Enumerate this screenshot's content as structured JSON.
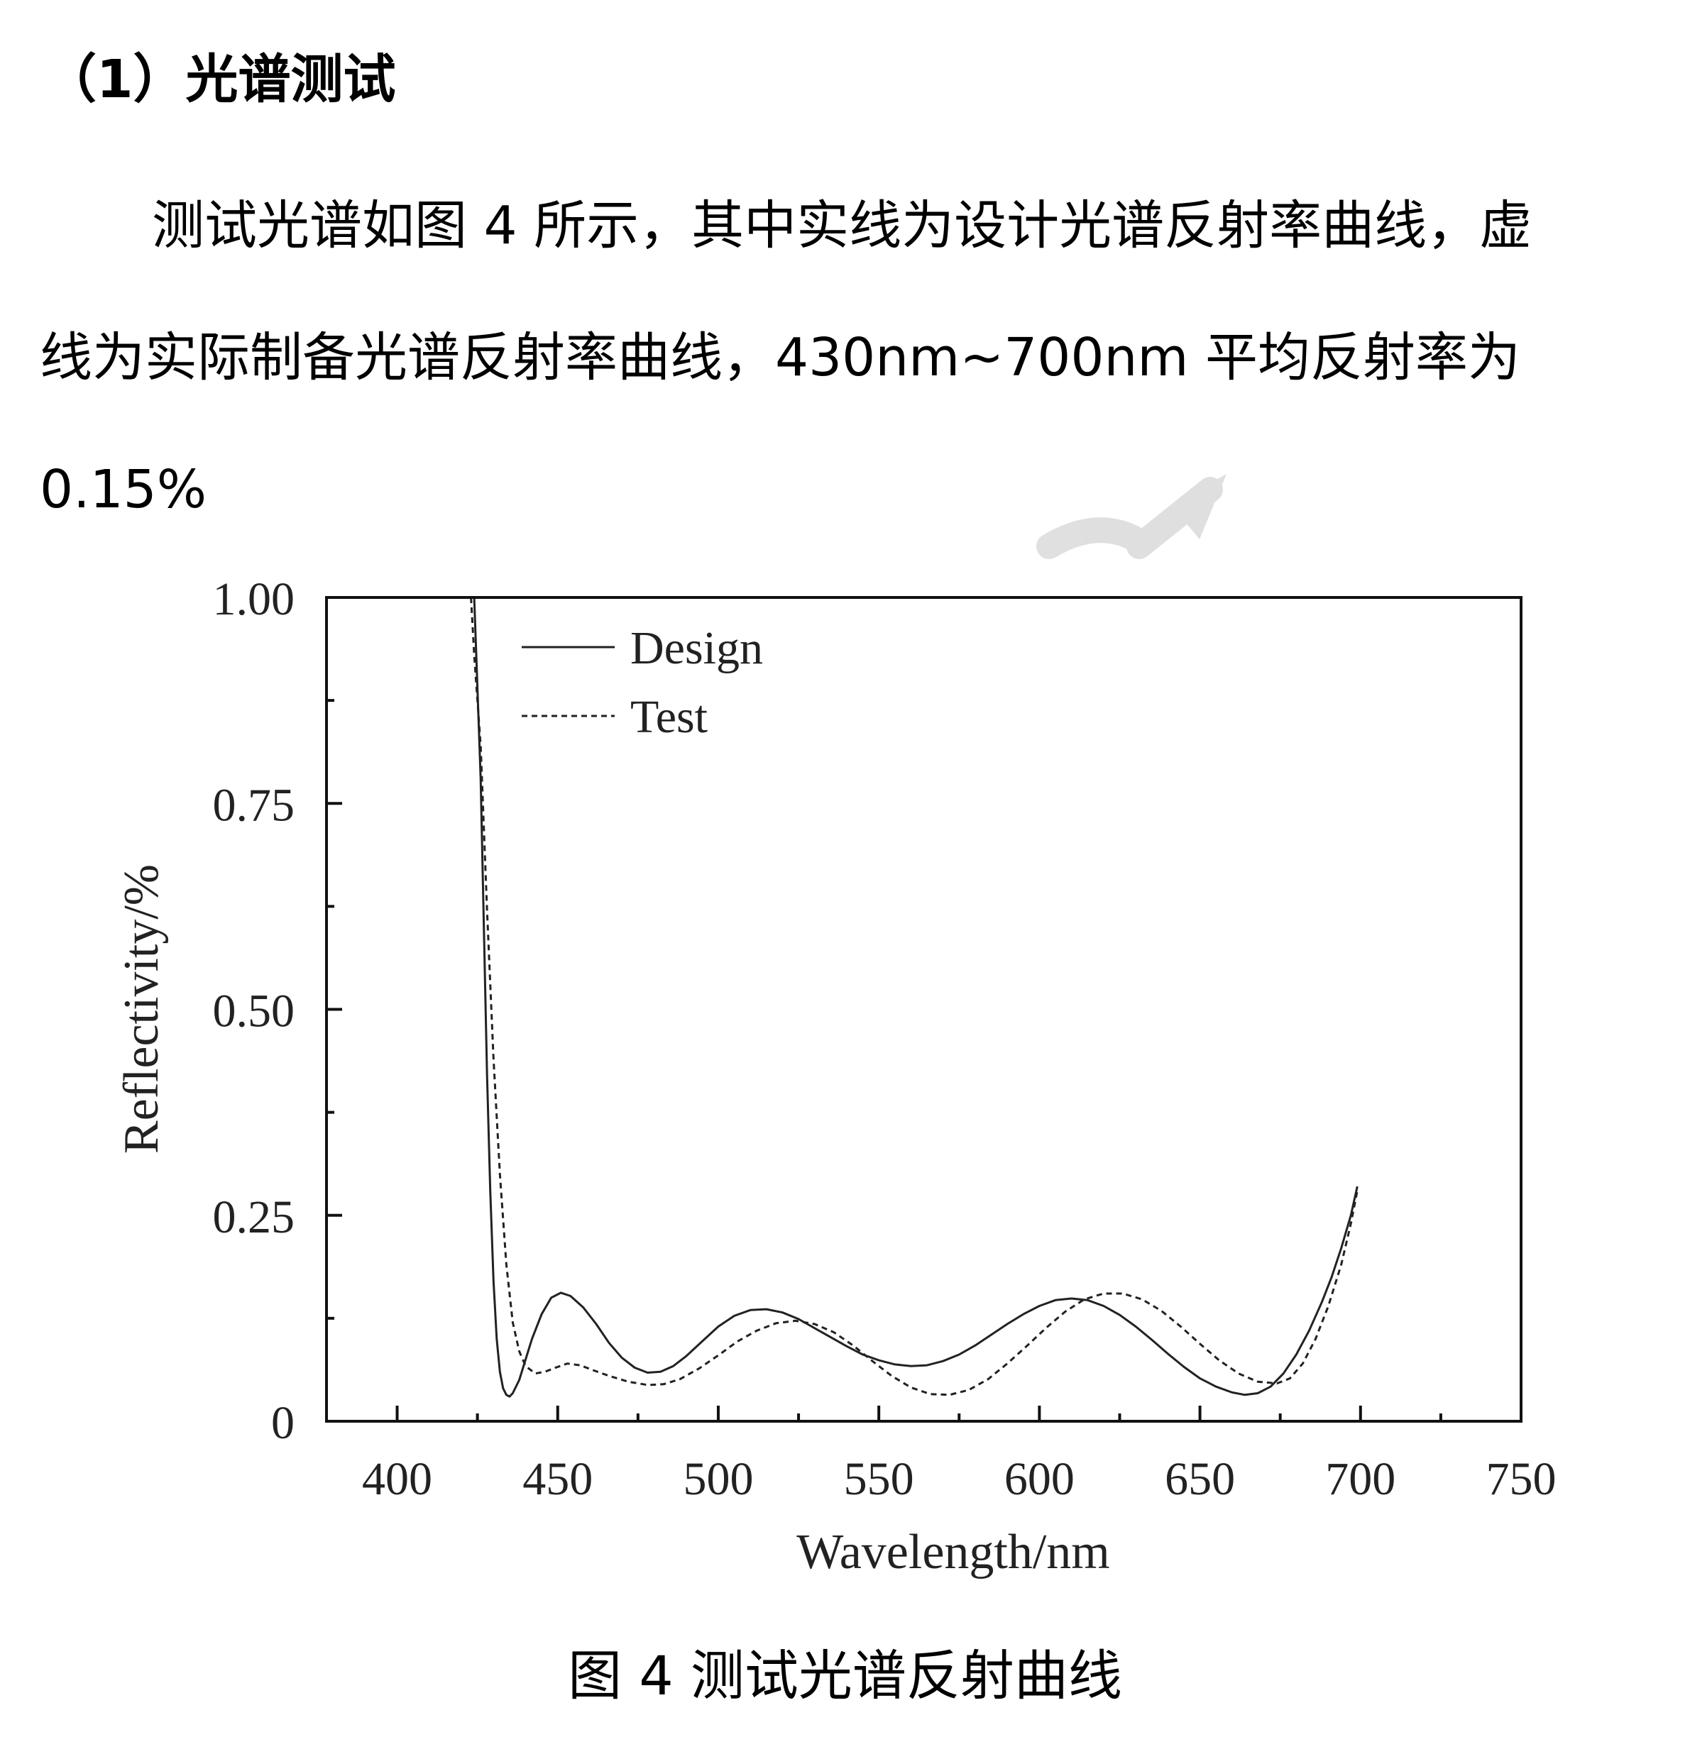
{
  "section": {
    "heading": "（1）光谱测试",
    "paragraph_lines": [
      "测试光谱如图 4 所示，其中实线为设计光谱反射率曲线，虚",
      "线为实际制备光谱反射率曲线，430nm~700nm 平均反射率为",
      "0.15%"
    ]
  },
  "figure": {
    "caption": "图 4  测试光谱反射曲线"
  },
  "chart_data": {
    "type": "line",
    "title": "",
    "xlabel": "Wavelength/nm",
    "ylabel": "Reflectivity/%",
    "xlim": [
      378,
      750
    ],
    "ylim": [
      0,
      1.0
    ],
    "x_ticks": [
      400,
      450,
      500,
      550,
      600,
      650,
      700,
      750
    ],
    "x_tick_labels": [
      "400",
      "450",
      "500",
      "550",
      "600",
      "650",
      "700",
      "750"
    ],
    "y_ticks": [
      0,
      0.25,
      0.5,
      0.75,
      1.0
    ],
    "y_tick_labels": [
      "0",
      "0.25",
      "0.50",
      "0.75",
      "1.00"
    ],
    "legend_position": "top-left",
    "grid": false,
    "series": [
      {
        "name": "Design",
        "style": "solid",
        "color": "#222222",
        "points": [
          [
            424,
            1.0
          ],
          [
            426,
            0.78
          ],
          [
            427,
            0.6
          ],
          [
            428,
            0.42
          ],
          [
            429,
            0.28
          ],
          [
            430,
            0.17
          ],
          [
            431,
            0.1
          ],
          [
            432,
            0.06
          ],
          [
            433,
            0.04
          ],
          [
            434,
            0.032
          ],
          [
            435,
            0.03
          ],
          [
            436,
            0.034
          ],
          [
            438,
            0.05
          ],
          [
            440,
            0.075
          ],
          [
            442,
            0.1
          ],
          [
            445,
            0.13
          ],
          [
            448,
            0.15
          ],
          [
            451,
            0.156
          ],
          [
            454,
            0.152
          ],
          [
            458,
            0.138
          ],
          [
            462,
            0.118
          ],
          [
            466,
            0.095
          ],
          [
            470,
            0.077
          ],
          [
            474,
            0.065
          ],
          [
            478,
            0.059
          ],
          [
            482,
            0.06
          ],
          [
            486,
            0.067
          ],
          [
            490,
            0.079
          ],
          [
            495,
            0.097
          ],
          [
            500,
            0.115
          ],
          [
            505,
            0.128
          ],
          [
            510,
            0.135
          ],
          [
            515,
            0.136
          ],
          [
            520,
            0.132
          ],
          [
            525,
            0.124
          ],
          [
            530,
            0.113
          ],
          [
            535,
            0.102
          ],
          [
            540,
            0.091
          ],
          [
            545,
            0.081
          ],
          [
            550,
            0.074
          ],
          [
            555,
            0.069
          ],
          [
            560,
            0.067
          ],
          [
            565,
            0.068
          ],
          [
            570,
            0.073
          ],
          [
            575,
            0.081
          ],
          [
            580,
            0.092
          ],
          [
            585,
            0.105
          ],
          [
            590,
            0.118
          ],
          [
            595,
            0.13
          ],
          [
            600,
            0.14
          ],
          [
            605,
            0.147
          ],
          [
            610,
            0.149
          ],
          [
            615,
            0.147
          ],
          [
            620,
            0.14
          ],
          [
            625,
            0.129
          ],
          [
            630,
            0.115
          ],
          [
            635,
            0.099
          ],
          [
            640,
            0.082
          ],
          [
            645,
            0.066
          ],
          [
            650,
            0.052
          ],
          [
            655,
            0.042
          ],
          [
            660,
            0.035
          ],
          [
            664,
            0.032
          ],
          [
            668,
            0.034
          ],
          [
            672,
            0.042
          ],
          [
            676,
            0.058
          ],
          [
            680,
            0.081
          ],
          [
            684,
            0.11
          ],
          [
            688,
            0.145
          ],
          [
            691,
            0.175
          ],
          [
            694,
            0.21
          ],
          [
            697,
            0.25
          ],
          [
            699,
            0.285
          ]
        ]
      },
      {
        "name": "Test",
        "style": "dashed",
        "color": "#222222",
        "points": [
          [
            423,
            1.0
          ],
          [
            424,
            0.93
          ],
          [
            426,
            0.82
          ],
          [
            428,
            0.62
          ],
          [
            430,
            0.44
          ],
          [
            432,
            0.3
          ],
          [
            434,
            0.19
          ],
          [
            436,
            0.12
          ],
          [
            438,
            0.085
          ],
          [
            440,
            0.067
          ],
          [
            443,
            0.058
          ],
          [
            446,
            0.06
          ],
          [
            450,
            0.066
          ],
          [
            453,
            0.07
          ],
          [
            457,
            0.068
          ],
          [
            461,
            0.062
          ],
          [
            466,
            0.055
          ],
          [
            472,
            0.048
          ],
          [
            478,
            0.044
          ],
          [
            483,
            0.045
          ],
          [
            488,
            0.051
          ],
          [
            494,
            0.064
          ],
          [
            500,
            0.08
          ],
          [
            506,
            0.097
          ],
          [
            512,
            0.11
          ],
          [
            518,
            0.119
          ],
          [
            524,
            0.122
          ],
          [
            530,
            0.118
          ],
          [
            536,
            0.108
          ],
          [
            542,
            0.092
          ],
          [
            548,
            0.073
          ],
          [
            554,
            0.055
          ],
          [
            560,
            0.041
          ],
          [
            566,
            0.033
          ],
          [
            572,
            0.032
          ],
          [
            578,
            0.038
          ],
          [
            584,
            0.051
          ],
          [
            590,
            0.07
          ],
          [
            596,
            0.091
          ],
          [
            602,
            0.113
          ],
          [
            608,
            0.133
          ],
          [
            614,
            0.148
          ],
          [
            620,
            0.155
          ],
          [
            626,
            0.155
          ],
          [
            632,
            0.148
          ],
          [
            638,
            0.134
          ],
          [
            644,
            0.115
          ],
          [
            650,
            0.094
          ],
          [
            656,
            0.074
          ],
          [
            662,
            0.058
          ],
          [
            668,
            0.048
          ],
          [
            674,
            0.046
          ],
          [
            678,
            0.052
          ],
          [
            682,
            0.07
          ],
          [
            686,
            0.1
          ],
          [
            690,
            0.14
          ],
          [
            694,
            0.19
          ],
          [
            697,
            0.24
          ],
          [
            699,
            0.28
          ]
        ]
      }
    ]
  }
}
